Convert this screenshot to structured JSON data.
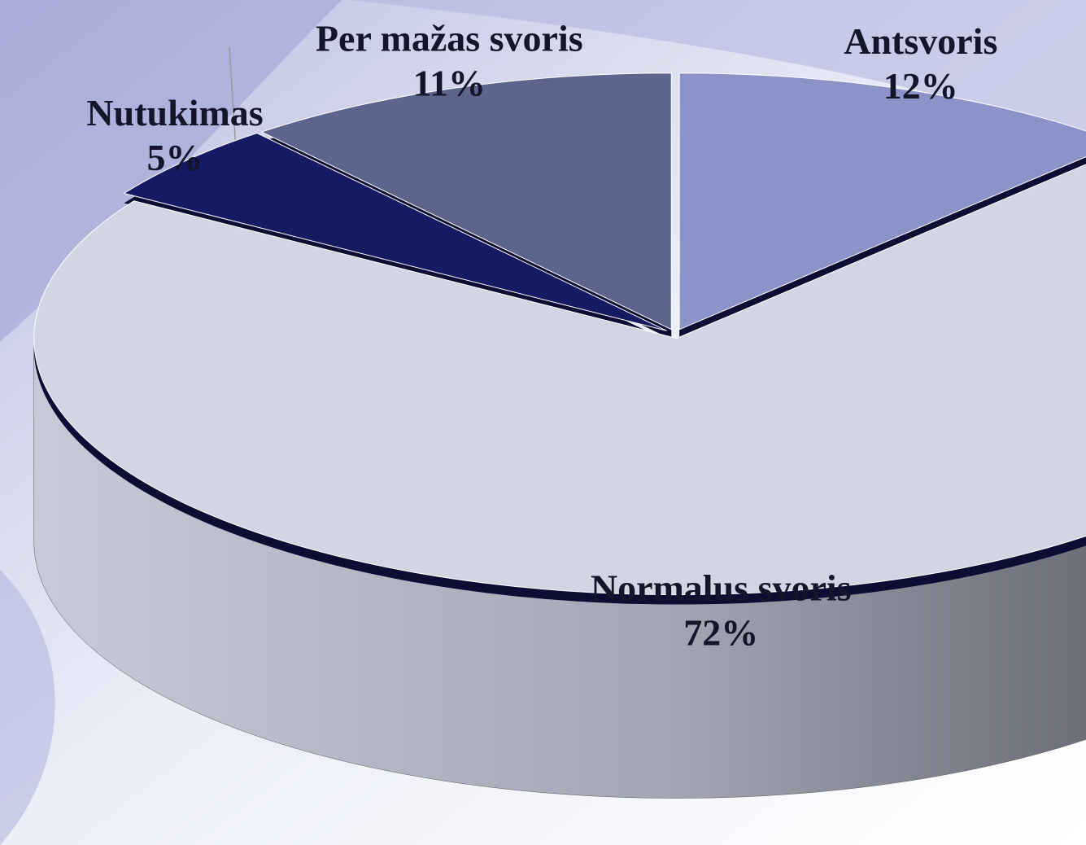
{
  "chart_data": {
    "type": "pie",
    "categories": [
      "Antsvoris",
      "Normalus svoris",
      "Nutukimas",
      "Per mažas svoris"
    ],
    "values": [
      12,
      72,
      5,
      11
    ],
    "value_labels": [
      "12%",
      "72%",
      "5%",
      "11%"
    ],
    "colors": [
      "#8b93c8",
      "#d3d5e5",
      "#151a62",
      "#5e658c"
    ]
  }
}
